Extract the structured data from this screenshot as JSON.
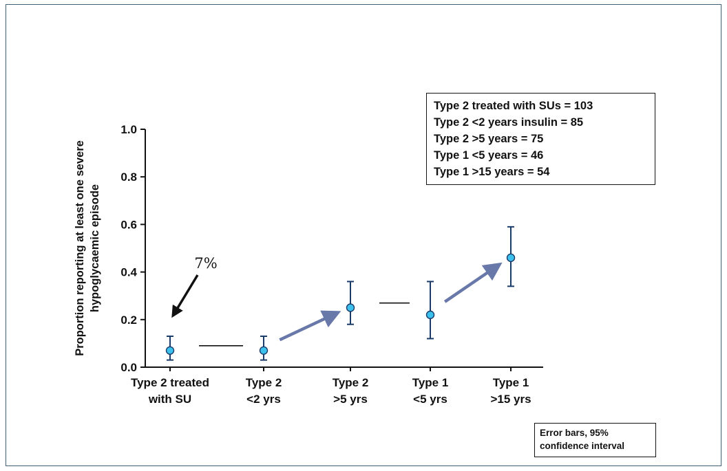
{
  "chart_data": {
    "type": "scatter",
    "title": "",
    "xlabel": "",
    "ylabel_lines": [
      "Proportion reporting at least one severe",
      "hypoglycaemic episode"
    ],
    "ylim": [
      0.0,
      1.0
    ],
    "yticks": [
      "0.0",
      "0.2",
      "0.4",
      "0.6",
      "0.8",
      "1.0"
    ],
    "categories": [
      [
        "Type 2 treated",
        "with SU"
      ],
      [
        "Type 2",
        "<2 yrs"
      ],
      [
        "Type 2",
        ">5 yrs"
      ],
      [
        "Type 1",
        "<5 yrs"
      ],
      [
        "Type 1",
        ">15 yrs"
      ]
    ],
    "values": [
      0.07,
      0.07,
      0.25,
      0.22,
      0.46
    ],
    "error_low": [
      0.03,
      0.03,
      0.18,
      0.12,
      0.34
    ],
    "error_high": [
      0.13,
      0.13,
      0.36,
      0.36,
      0.59
    ],
    "connectors": [
      {
        "from": 0,
        "to": 1,
        "style": "line"
      },
      {
        "from": 1,
        "to": 2,
        "style": "arrow"
      },
      {
        "from": 2,
        "to": 3,
        "style": "line"
      },
      {
        "from": 3,
        "to": 4,
        "style": "arrow"
      }
    ],
    "annotation": {
      "text": "7%",
      "points_to": 0
    },
    "legend": {
      "placement": "top-right",
      "entries": [
        "Type 2 treated with SUs = 103",
        "Type 2 <2 years insulin = 85",
        "Type 2 >5 years = 75",
        "Type 1 <5 years = 46",
        "Type 1 >15 years = 54"
      ]
    },
    "note_lines": [
      "Error bars, 95%",
      "confidence interval"
    ],
    "grid": false,
    "colors": {
      "marker_fill": "#3cc0ec",
      "marker_stroke": "#1a3a6a",
      "error_bar": "#1a3a6a",
      "arrow": "#6878a8",
      "axis": "#111111",
      "frame": "#3f5f75"
    }
  }
}
